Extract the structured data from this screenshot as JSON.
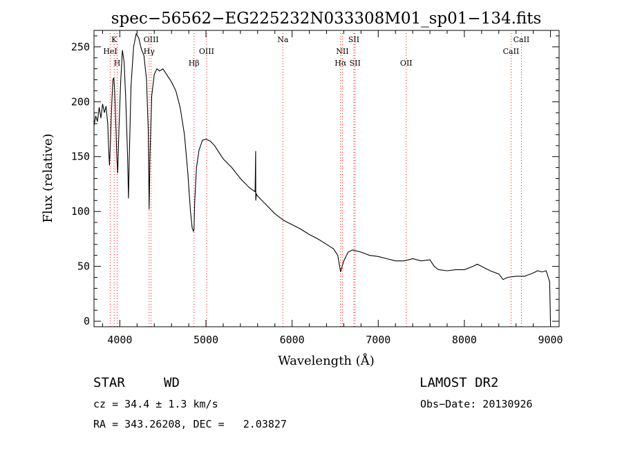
{
  "chart_data": {
    "type": "line",
    "title": "spec−56562−EG225232N033308M01_sp01−134.fits",
    "xlabel": "Wavelength (Å)",
    "ylabel": "Flux (relative)",
    "xlim": [
      3700,
      9100
    ],
    "ylim": [
      -5,
      265
    ],
    "x_ticks": [
      4000,
      5000,
      6000,
      7000,
      8000,
      9000
    ],
    "x_tick_labels": [
      "4000",
      "5000",
      "6000",
      "7000",
      "8000",
      "9000"
    ],
    "y_ticks": [
      0,
      50,
      100,
      150,
      200,
      250
    ],
    "y_tick_labels": [
      "0",
      "50",
      "100",
      "150",
      "200",
      "250"
    ],
    "grid": false,
    "line_color": "#000000",
    "marker_color": "#ff0000",
    "series": [
      {
        "x": [
          3700,
          3720,
          3740,
          3760,
          3780,
          3800,
          3820,
          3840,
          3860,
          3870,
          3880,
          3890,
          3900,
          3910,
          3920,
          3930,
          3940,
          3955,
          3965,
          3975,
          3990,
          4010,
          4030,
          4050,
          4070,
          4090,
          4100,
          4110,
          4130,
          4160,
          4190,
          4220,
          4250,
          4280,
          4310,
          4330,
          4340,
          4350,
          4370,
          4400,
          4430,
          4460,
          4500,
          4550,
          4600,
          4650,
          4700,
          4750,
          4790,
          4820,
          4840,
          4855,
          4861,
          4870,
          4890,
          4920,
          4960,
          5000,
          5050,
          5100,
          5150,
          5200,
          5300,
          5400,
          5500,
          5570,
          5577,
          5578,
          5585,
          5600,
          5700,
          5800,
          5900,
          6000,
          6100,
          6200,
          6300,
          6400,
          6480,
          6530,
          6563,
          6600,
          6650,
          6700,
          6800,
          6900,
          7000,
          7100,
          7200,
          7300,
          7400,
          7500,
          7600,
          7650,
          7700,
          7800,
          7900,
          8000,
          8100,
          8150,
          8200,
          8300,
          8400,
          8450,
          8500,
          8600,
          8700,
          8800,
          8850,
          8900,
          8950,
          8990,
          9000
        ],
        "y": [
          178,
          187,
          182,
          195,
          185,
          198,
          190,
          196,
          180,
          158,
          142,
          160,
          185,
          205,
          220,
          222,
          210,
          175,
          150,
          135,
          175,
          218,
          247,
          236,
          200,
          150,
          112,
          150,
          215,
          250,
          262,
          258,
          248,
          242,
          220,
          175,
          102,
          150,
          205,
          225,
          230,
          228,
          230,
          224,
          218,
          210,
          195,
          170,
          135,
          100,
          85,
          82,
          84,
          110,
          140,
          156,
          165,
          166,
          164,
          160,
          154,
          148,
          140,
          130,
          122,
          118,
          155,
          110,
          116,
          114,
          106,
          98,
          92,
          88,
          84,
          79,
          75,
          70,
          66,
          60,
          45,
          55,
          63,
          65,
          63,
          60,
          59,
          57,
          55,
          55,
          57,
          55,
          56,
          50,
          47,
          46,
          47,
          47,
          50,
          52,
          50,
          46,
          43,
          38,
          40,
          41,
          41,
          44,
          46,
          45,
          46,
          36,
          0
        ]
      }
    ],
    "spectral_lines": [
      {
        "name": "K",
        "x": 3934,
        "tier": 0
      },
      {
        "name": "HeI",
        "x": 3889,
        "tier": 1
      },
      {
        "name": "H",
        "x": 3969,
        "tier": 2
      },
      {
        "name": "OIII",
        "x": 4363,
        "tier": 0
      },
      {
        "name": "Hγ",
        "x": 4340,
        "tier": 1
      },
      {
        "name": "Hβ",
        "x": 4861,
        "tier": 2
      },
      {
        "name": "OIII",
        "x": 5007,
        "tier": 1
      },
      {
        "name": "Na",
        "x": 5893,
        "tier": 0
      },
      {
        "name": "SII",
        "x": 6717,
        "tier": 0
      },
      {
        "name": "NII",
        "x": 6584,
        "tier": 1
      },
      {
        "name": "Hα",
        "x": 6563,
        "tier": 2
      },
      {
        "name": "SII",
        "x": 6731,
        "tier": 2
      },
      {
        "name": "OII",
        "x": 7325,
        "tier": 2
      },
      {
        "name": "CaII",
        "x": 8662,
        "tier": 0
      },
      {
        "name": "CaII",
        "x": 8542,
        "tier": 1
      }
    ]
  },
  "info": {
    "object_type": "STAR",
    "subclass": "WD",
    "survey": "LAMOST DR2",
    "cz": "cz = 34.4 ± 1.3 km/s",
    "obs_date": "Obs−Date: 20130926",
    "coords": "RA = 343.26208, DEC =   2.03827"
  }
}
